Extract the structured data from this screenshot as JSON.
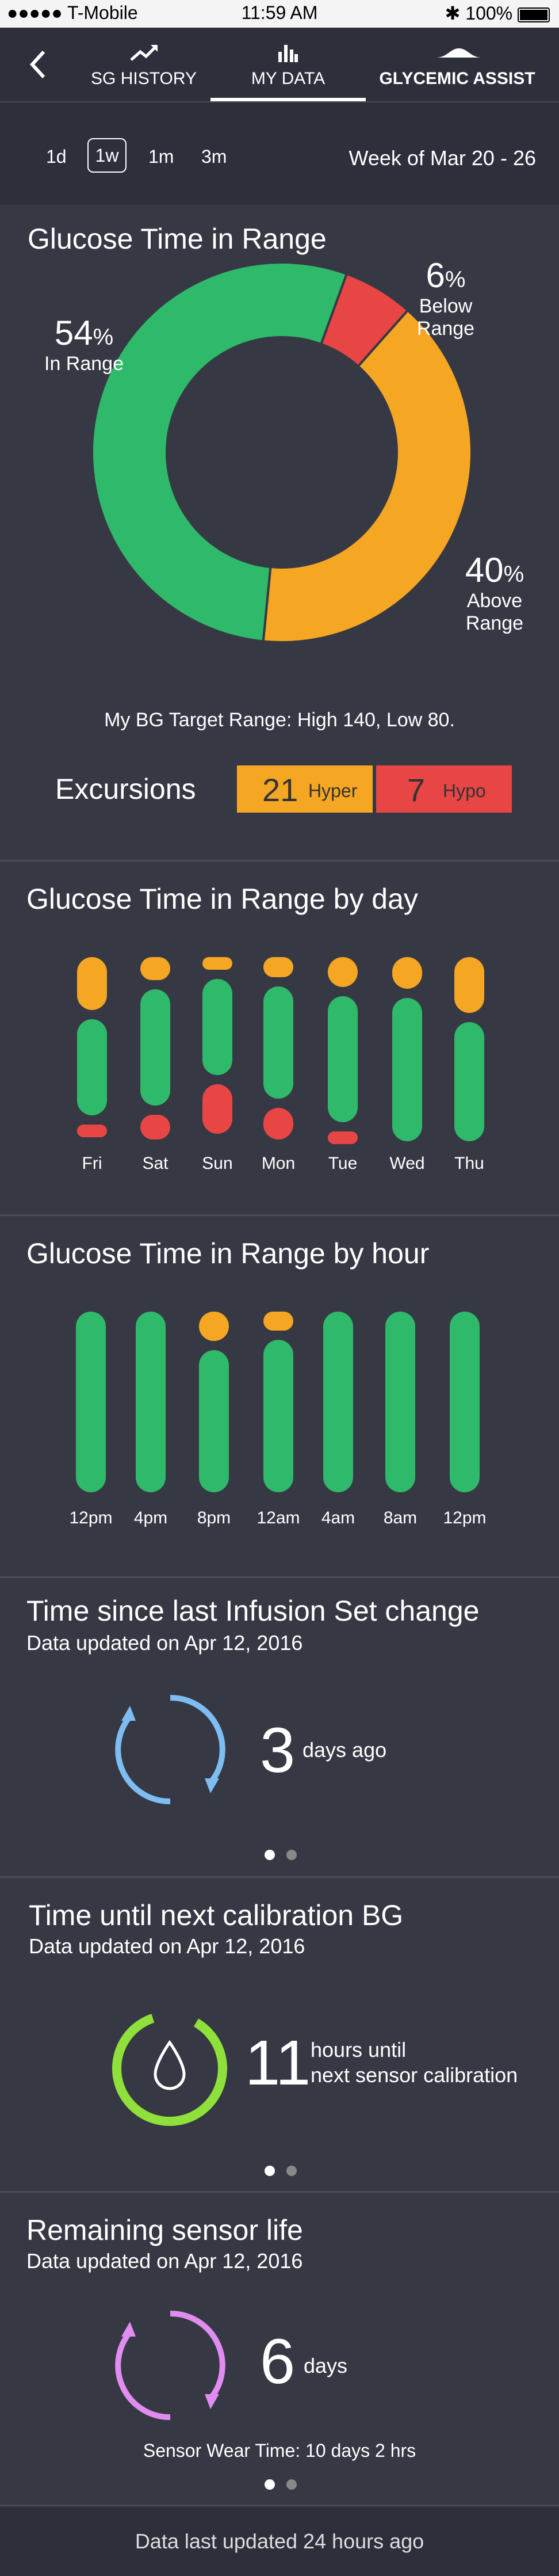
{
  "status_bar": {
    "carrier": "●●●●● T-Mobile",
    "time": "11:59 AM",
    "battery": "100%"
  },
  "nav": {
    "tabs": [
      {
        "label": "SG HISTORY",
        "icon": "trend-icon"
      },
      {
        "label": "MY DATA",
        "icon": "bar-chart-icon",
        "active": true
      },
      {
        "label": "GLYCEMIC ASSIST",
        "icon": "wave-icon"
      }
    ]
  },
  "filters": {
    "ranges": [
      "1d",
      "1w",
      "1m",
      "3m"
    ],
    "selected": "1w",
    "week": "Week of Mar 20 - 26"
  },
  "time_in_range": {
    "title": "Glucose Time in Range",
    "in_range": {
      "value": "54",
      "pct": "%",
      "label": "In Range"
    },
    "below_range": {
      "value": "6",
      "pct": "%",
      "label1": "Below",
      "label2": "Range"
    },
    "above_range": {
      "value": "40",
      "pct": "%",
      "label1": "Above",
      "label2": "Range"
    },
    "target": "My BG Target Range: High 140, Low 80.",
    "excursions_label": "Excursions",
    "hyper": {
      "count": "21",
      "label": "Hyper"
    },
    "hypo": {
      "count": "7",
      "label": "Hypo"
    }
  },
  "chart_data": [
    {
      "type": "pie",
      "title": "Glucose Time in Range",
      "categories": [
        "In Range",
        "Below Range",
        "Above Range"
      ],
      "values": [
        54,
        6,
        40
      ]
    },
    {
      "type": "bar",
      "title": "Glucose Time in Range by day",
      "categories": [
        "Fri",
        "Sat",
        "Sun",
        "Mon",
        "Tue",
        "Wed",
        "Thu"
      ],
      "series": [
        {
          "name": "Above",
          "values": [
            0.32,
            0.14,
            0.07,
            0.12,
            0.18,
            0.18,
            0.32
          ]
        },
        {
          "name": "In Range",
          "values": [
            0.58,
            0.7,
            0.58,
            0.68,
            0.76,
            0.82,
            0.68
          ]
        },
        {
          "name": "Below",
          "values": [
            0.07,
            0.15,
            0.3,
            0.19,
            0.05,
            0.0,
            0.0
          ]
        }
      ]
    },
    {
      "type": "bar",
      "title": "Glucose Time in Range by hour",
      "categories": [
        "12pm",
        "4pm",
        "8pm",
        "12am",
        "4am",
        "8am",
        "12pm"
      ],
      "series": [
        {
          "name": "Above",
          "values": [
            0.0,
            0.0,
            0.17,
            0.11,
            0.0,
            0.0,
            0.0
          ]
        },
        {
          "name": "In Range",
          "values": [
            1.0,
            1.0,
            0.83,
            0.89,
            1.0,
            1.0,
            1.0
          ]
        }
      ]
    }
  ],
  "by_day": {
    "title": "Glucose Time in Range by day"
  },
  "by_hour": {
    "title": "Glucose Time in Range by hour"
  },
  "infusion": {
    "title": "Time since last Infusion Set change",
    "updated": "Data updated on Apr 12, 2016",
    "value": "3",
    "unit": "days ago"
  },
  "calibration": {
    "title": "Time until next calibration BG",
    "updated": "Data updated on Apr 12, 2016",
    "value": "11",
    "unit1": "hours until",
    "unit2": "next sensor calibration"
  },
  "sensor": {
    "title": "Remaining sensor life",
    "updated": "Data updated on Apr 12, 2016",
    "value": "6",
    "unit": "days",
    "wear": "Sensor Wear Time:  10 days 2 hrs"
  },
  "footer": {
    "text": "Data last updated 24 hours ago"
  },
  "colors": {
    "green": "#2fb96a",
    "orange": "#f5a623",
    "red": "#e84545",
    "blue": "#7dbdf2",
    "lime": "#8fe03a",
    "pink": "#e08cf0"
  }
}
